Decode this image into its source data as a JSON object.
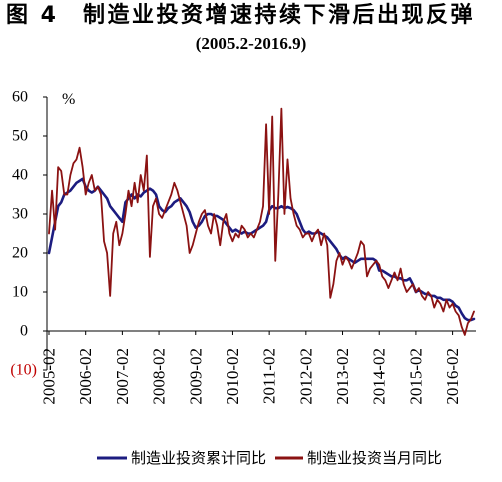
{
  "chart_data": {
    "type": "line",
    "title": "图 4　制造业投资增速持续下滑后出现反弹",
    "subtitle": "(2005.2-2016.9)",
    "ylabel": "%",
    "ylim": [
      -10,
      60
    ],
    "yticks": [
      60,
      50,
      40,
      30,
      20,
      10,
      0,
      -10
    ],
    "ytick_labels": [
      "60",
      "50",
      "40",
      "30",
      "20",
      "10",
      "0",
      "(10)"
    ],
    "negative_tick_color": "#c00000",
    "xtick_labels": [
      "2005-02",
      "2006-02",
      "2007-02",
      "2008-02",
      "2009-02",
      "2010-02",
      "2011-02",
      "2012-02",
      "2013-02",
      "2014-02",
      "2015-02",
      "2016-02"
    ],
    "grid": false,
    "legend": "bottom",
    "categories": [
      "2005-02",
      "2005-03",
      "2005-04",
      "2005-05",
      "2005-06",
      "2005-07",
      "2005-08",
      "2005-09",
      "2005-10",
      "2005-11",
      "2005-12",
      "2006-01",
      "2006-02",
      "2006-03",
      "2006-04",
      "2006-05",
      "2006-06",
      "2006-07",
      "2006-08",
      "2006-09",
      "2006-10",
      "2006-11",
      "2006-12",
      "2007-01",
      "2007-02",
      "2007-03",
      "2007-04",
      "2007-05",
      "2007-06",
      "2007-07",
      "2007-08",
      "2007-09",
      "2007-10",
      "2007-11",
      "2007-12",
      "2008-01",
      "2008-02",
      "2008-03",
      "2008-04",
      "2008-05",
      "2008-06",
      "2008-07",
      "2008-08",
      "2008-09",
      "2008-10",
      "2008-11",
      "2008-12",
      "2009-01",
      "2009-02",
      "2009-03",
      "2009-04",
      "2009-05",
      "2009-06",
      "2009-07",
      "2009-08",
      "2009-09",
      "2009-10",
      "2009-11",
      "2009-12",
      "2010-01",
      "2010-02",
      "2010-03",
      "2010-04",
      "2010-05",
      "2010-06",
      "2010-07",
      "2010-08",
      "2010-09",
      "2010-10",
      "2010-11",
      "2010-12",
      "2011-01",
      "2011-02",
      "2011-03",
      "2011-04",
      "2011-05",
      "2011-06",
      "2011-07",
      "2011-08",
      "2011-09",
      "2011-10",
      "2011-11",
      "2011-12",
      "2012-01",
      "2012-02",
      "2012-03",
      "2012-04",
      "2012-05",
      "2012-06",
      "2012-07",
      "2012-08",
      "2012-09",
      "2012-10",
      "2012-11",
      "2012-12",
      "2013-01",
      "2013-02",
      "2013-03",
      "2013-04",
      "2013-05",
      "2013-06",
      "2013-07",
      "2013-08",
      "2013-09",
      "2013-10",
      "2013-11",
      "2013-12",
      "2014-01",
      "2014-02",
      "2014-03",
      "2014-04",
      "2014-05",
      "2014-06",
      "2014-07",
      "2014-08",
      "2014-09",
      "2014-10",
      "2014-11",
      "2014-12",
      "2015-01",
      "2015-02",
      "2015-03",
      "2015-04",
      "2015-05",
      "2015-06",
      "2015-07",
      "2015-08",
      "2015-09",
      "2015-10",
      "2015-11",
      "2015-12",
      "2016-01",
      "2016-02",
      "2016-03",
      "2016-04",
      "2016-05",
      "2016-06",
      "2016-07",
      "2016-08",
      "2016-09"
    ],
    "series": [
      {
        "name": "制造业投资累计同比",
        "color": "#1c1c80",
        "values": [
          20,
          24,
          28,
          32,
          33,
          35,
          35.5,
          36,
          37,
          38,
          38.5,
          39,
          37,
          36,
          35.5,
          36,
          37,
          36,
          35,
          34,
          32,
          31,
          30,
          29,
          28,
          33,
          34,
          35,
          34,
          35,
          34.5,
          35.5,
          36,
          36.5,
          36,
          35,
          32,
          31,
          30.5,
          31.5,
          32,
          33,
          33.5,
          34,
          33,
          32,
          30.5,
          28,
          26.5,
          27,
          28,
          29.5,
          30,
          30,
          29.5,
          29.5,
          29,
          28.5,
          27.5,
          26.5,
          25.5,
          26,
          25.5,
          25,
          25.5,
          25,
          25,
          25.5,
          26,
          26.5,
          27,
          28,
          31,
          32,
          31.5,
          31.5,
          32,
          31.5,
          31.8,
          31.5,
          31,
          30,
          28,
          26,
          25,
          25.5,
          25,
          25,
          25.5,
          25,
          24.5,
          24,
          23,
          22,
          21,
          19.5,
          18.5,
          19,
          18.5,
          18,
          17.5,
          18,
          18.5,
          18.5,
          18.5,
          18.5,
          18.5,
          18,
          15.5,
          15.5,
          15,
          14.5,
          14,
          14,
          13.5,
          13.5,
          13,
          13,
          13.5,
          12,
          10,
          10.5,
          10,
          9.5,
          9.5,
          9,
          9,
          8.5,
          8.5,
          8,
          8,
          8,
          7.5,
          6.5,
          6,
          4.5,
          3.3,
          2.8,
          2.8,
          3.1
        ]
      },
      {
        "name": "制造业投资当月同比",
        "color": "#8b1212",
        "values": [
          25,
          36,
          26,
          42,
          41,
          35,
          35,
          40,
          43,
          44,
          47,
          42,
          35,
          38,
          40,
          36,
          37,
          35,
          23,
          20,
          9,
          25,
          28,
          22,
          25,
          30,
          36,
          32,
          38,
          33,
          40,
          36,
          45,
          19,
          32,
          34,
          30,
          29,
          31,
          33,
          35,
          38,
          36,
          33,
          30,
          27,
          20,
          22,
          25,
          28,
          30,
          31,
          27,
          25,
          30,
          27,
          22,
          28,
          30,
          25,
          23,
          25,
          24,
          27,
          26,
          24,
          25,
          24,
          26,
          28,
          32,
          53,
          30,
          55,
          18,
          35,
          57,
          30,
          44,
          34,
          30,
          27,
          26,
          24,
          25,
          25,
          23,
          25,
          26,
          22,
          25,
          22,
          8.5,
          12,
          18,
          20,
          17,
          19,
          18,
          16,
          18,
          20,
          23,
          22,
          14,
          16,
          17,
          18,
          17,
          14,
          13,
          11,
          13,
          15,
          13,
          16,
          12,
          10,
          11,
          12,
          10,
          11,
          9,
          8,
          10,
          9,
          6,
          8,
          7,
          5,
          8,
          6,
          7,
          5,
          4,
          1,
          -1,
          2,
          3,
          5
        ]
      }
    ]
  }
}
